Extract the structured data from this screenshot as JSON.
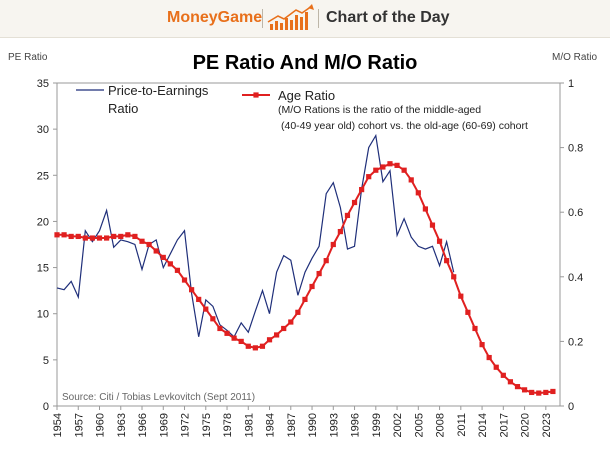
{
  "banner": {
    "brand": "MoneyGame",
    "label": "Chart of the Day",
    "brand_color": "#e8701b"
  },
  "chart_data": {
    "type": "line",
    "title": "PE Ratio And M/O Ratio",
    "ylabel_left": "PE Ratio",
    "ylabel_right": "M/O Ratio",
    "source": "Source: Citi / Tobias Levkovitch (Sept 2011)",
    "annotation_lines": [
      "(M/O Rations is the ratio of the middle-aged",
      "(40-49 year old) cohort vs. the old-age (60-69) cohort"
    ],
    "xlim": [
      1954,
      2025
    ],
    "ylim_left": [
      0,
      35
    ],
    "ylim_right": [
      0,
      1
    ],
    "x_ticks": [
      "1954",
      "1957",
      "1960",
      "1963",
      "1966",
      "1969",
      "1972",
      "1975",
      "1978",
      "1981",
      "1984",
      "1987",
      "1990",
      "1993",
      "1996",
      "1999",
      "2002",
      "2005",
      "2008",
      "2011",
      "2014",
      "2017",
      "2020",
      "2023"
    ],
    "y_ticks_left": [
      "0",
      "5",
      "10",
      "15",
      "20",
      "25",
      "30",
      "35"
    ],
    "y_ticks_right": [
      "0",
      "0.2",
      "0.4",
      "0.6",
      "0.8",
      "1"
    ],
    "legend_position": "top",
    "grid": false,
    "series": [
      {
        "name": "Price-to-Earnings Ratio",
        "legend_lines": [
          "Price-to-Earnings",
          "Ratio"
        ],
        "axis": "left",
        "color": "#1f2f7a",
        "marker": "none",
        "x": [
          1954,
          1955,
          1956,
          1957,
          1958,
          1959,
          1960,
          1961,
          1962,
          1963,
          1964,
          1965,
          1966,
          1967,
          1968,
          1969,
          1970,
          1971,
          1972,
          1973,
          1974,
          1975,
          1976,
          1977,
          1978,
          1979,
          1980,
          1981,
          1982,
          1983,
          1984,
          1985,
          1986,
          1987,
          1988,
          1989,
          1990,
          1991,
          1992,
          1993,
          1994,
          1995,
          1996,
          1997,
          1998,
          1999,
          2000,
          2001,
          2002,
          2003,
          2004,
          2005,
          2006,
          2007,
          2008,
          2009,
          2010
        ],
        "y": [
          12.8,
          12.6,
          13.5,
          11.8,
          19.0,
          17.8,
          19.0,
          21.2,
          17.2,
          18.0,
          17.8,
          17.5,
          14.8,
          17.5,
          18.0,
          15.0,
          16.5,
          18.0,
          19.0,
          12.2,
          7.5,
          11.5,
          10.8,
          8.8,
          8.2,
          7.5,
          9.0,
          8.0,
          10.3,
          12.5,
          10.0,
          14.5,
          16.3,
          15.8,
          12.0,
          14.5,
          16.0,
          17.3,
          23.0,
          24.2,
          21.5,
          17.0,
          17.3,
          23.5,
          28.0,
          29.3,
          24.3,
          25.5,
          18.5,
          20.3,
          18.3,
          17.3,
          17.0,
          17.3,
          15.2,
          17.8,
          14.5
        ]
      },
      {
        "name": "Age Ratio",
        "legend_lines": [
          "Age Ratio"
        ],
        "axis": "right",
        "color": "#e02020",
        "marker": "square",
        "x": [
          1954,
          1955,
          1956,
          1957,
          1958,
          1959,
          1960,
          1961,
          1962,
          1963,
          1964,
          1965,
          1966,
          1967,
          1968,
          1969,
          1970,
          1971,
          1972,
          1973,
          1974,
          1975,
          1976,
          1977,
          1978,
          1979,
          1980,
          1981,
          1982,
          1983,
          1984,
          1985,
          1986,
          1987,
          1988,
          1989,
          1990,
          1991,
          1992,
          1993,
          1994,
          1995,
          1996,
          1997,
          1998,
          1999,
          2000,
          2001,
          2002,
          2003,
          2004,
          2005,
          2006,
          2007,
          2008,
          2009,
          2010,
          2011,
          2012,
          2013,
          2014,
          2015,
          2016,
          2017,
          2018,
          2019,
          2020,
          2021,
          2022,
          2023,
          2024
        ],
        "y": [
          0.53,
          0.53,
          0.525,
          0.525,
          0.52,
          0.52,
          0.52,
          0.52,
          0.525,
          0.525,
          0.53,
          0.525,
          0.51,
          0.5,
          0.48,
          0.46,
          0.44,
          0.42,
          0.39,
          0.36,
          0.33,
          0.3,
          0.27,
          0.24,
          0.225,
          0.21,
          0.2,
          0.185,
          0.18,
          0.185,
          0.205,
          0.22,
          0.24,
          0.26,
          0.29,
          0.33,
          0.37,
          0.41,
          0.45,
          0.5,
          0.54,
          0.59,
          0.63,
          0.67,
          0.71,
          0.73,
          0.74,
          0.75,
          0.745,
          0.73,
          0.7,
          0.66,
          0.61,
          0.56,
          0.51,
          0.45,
          0.4,
          0.34,
          0.29,
          0.24,
          0.19,
          0.15,
          0.12,
          0.095,
          0.075,
          0.06,
          0.05,
          0.042,
          0.04,
          0.042,
          0.045
        ]
      }
    ]
  }
}
